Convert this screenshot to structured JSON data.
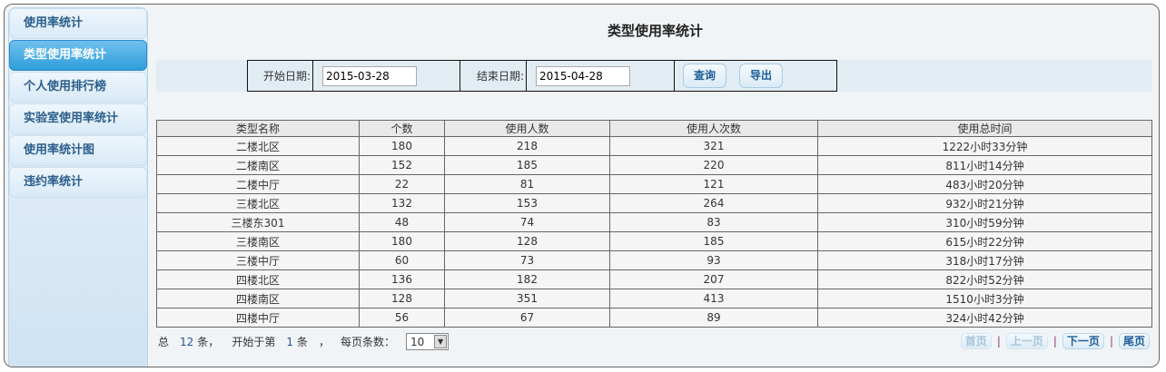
{
  "sidebar": {
    "items": [
      {
        "label": "使用率统计",
        "active": false
      },
      {
        "label": "类型使用率统计",
        "active": true
      },
      {
        "label": "个人使用排行榜",
        "active": false
      },
      {
        "label": "实验室使用率统计",
        "active": false
      },
      {
        "label": "使用率统计图",
        "active": false
      },
      {
        "label": "违约率统计",
        "active": false
      }
    ]
  },
  "page": {
    "title": "类型使用率统计"
  },
  "filter": {
    "start_label": "开始日期:",
    "start_value": "2015-03-28",
    "end_label": "结束日期:",
    "end_value": "2015-04-28",
    "query_label": "查询",
    "export_label": "导出"
  },
  "table": {
    "headers": [
      "类型名称",
      "个数",
      "使用人数",
      "使用人次数",
      "使用总时间"
    ],
    "rows": [
      [
        "二楼北区",
        "180",
        "218",
        "321",
        "1222小时33分钟"
      ],
      [
        "二楼南区",
        "152",
        "185",
        "220",
        "811小时14分钟"
      ],
      [
        "二楼中厅",
        "22",
        "81",
        "121",
        "483小时20分钟"
      ],
      [
        "三楼北区",
        "132",
        "153",
        "264",
        "932小时21分钟"
      ],
      [
        "三楼东301",
        "48",
        "74",
        "83",
        "310小时59分钟"
      ],
      [
        "三楼南区",
        "180",
        "128",
        "185",
        "615小时22分钟"
      ],
      [
        "三楼中厅",
        "60",
        "73",
        "93",
        "318小时17分钟"
      ],
      [
        "四楼北区",
        "136",
        "182",
        "207",
        "822小时52分钟"
      ],
      [
        "四楼南区",
        "128",
        "351",
        "413",
        "1510小时3分钟"
      ],
      [
        "四楼中厅",
        "56",
        "67",
        "89",
        "324小时42分钟"
      ]
    ]
  },
  "footer": {
    "total_prefix": "总",
    "total": "12",
    "total_suffix": "条，",
    "start_prefix": "开始于第",
    "start": "1",
    "start_suffix": "条",
    "comma": "，",
    "per_page_label": "每页条数：",
    "per_page": "10"
  },
  "pager": {
    "first": "首页",
    "prev": "上一页",
    "next": "下一页",
    "last": "尾页",
    "sep": "|"
  }
}
